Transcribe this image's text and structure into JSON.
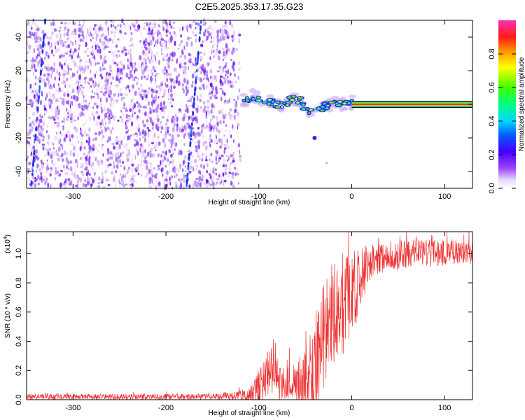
{
  "title": "C2E5.2025.353.17.35.G23",
  "chart_data": [
    {
      "type": "heatmap",
      "xlabel": "Height of straight line (km)",
      "ylabel": "Frequency (Hz)",
      "xlim": [
        -350,
        130
      ],
      "ylim": [
        -50,
        50
      ],
      "xticks": [
        -300,
        -200,
        -100,
        0,
        100
      ],
      "xtick_labels": [
        "-300",
        "-200",
        "-100",
        "0",
        "100"
      ],
      "yticks": [
        -40,
        -20,
        0,
        20,
        40
      ],
      "ytick_labels": [
        "-40",
        "-20",
        "0",
        "20",
        "40"
      ],
      "noise_region_x": [
        -350,
        -120
      ],
      "meteor_trails": [
        {
          "x_at_bottom": -178,
          "x_at_top": -162
        },
        {
          "x_at_bottom": -345,
          "x_at_top": -330
        }
      ],
      "signal_ridge": [
        {
          "x": -117,
          "freq": 2
        },
        {
          "x": -105,
          "freq": 5
        },
        {
          "x": -95,
          "freq": 2
        },
        {
          "x": -85,
          "freq": 1
        },
        {
          "x": -75,
          "freq": -1
        },
        {
          "x": -65,
          "freq": 3
        },
        {
          "x": -55,
          "freq": 2
        },
        {
          "x": -48,
          "freq": -4
        },
        {
          "x": -40,
          "freq": -6
        },
        {
          "x": -32,
          "freq": -2
        },
        {
          "x": -25,
          "freq": 0
        },
        {
          "x": -15,
          "freq": 1
        },
        {
          "x": -5,
          "freq": 0
        },
        {
          "x": 3,
          "freq": 1
        }
      ],
      "carrier": {
        "freq": 0,
        "x_start": 0,
        "x_end": 130
      },
      "colorbar": {
        "label": "Normalized spectral amplitude",
        "range": [
          0,
          1
        ],
        "ticks": [
          0.0,
          0.2,
          0.4,
          0.6,
          0.8
        ],
        "tick_labels": [
          "0.0",
          "0.2",
          "0.4",
          "0.6",
          "0.8"
        ],
        "colormap": "rainbow (white-violet-blue-cyan-green-yellow-red-magenta)"
      }
    },
    {
      "type": "line",
      "xlabel": "Height of straight line (km)",
      "ylabel": "SNR (10 * v/v)",
      "scale_label": "(x10",
      "scale_exponent": "4",
      "xlim": [
        -350,
        130
      ],
      "ylim": [
        0,
        1.15
      ],
      "xticks": [
        -300,
        -200,
        -100,
        0,
        100
      ],
      "xtick_labels": [
        "-300",
        "-200",
        "-100",
        "0",
        "100"
      ],
      "yticks": [
        0.0,
        0.2,
        0.4,
        0.6,
        0.8,
        1.0
      ],
      "ytick_labels": [
        "0.0",
        "0.2",
        "0.4",
        "0.6",
        "0.8",
        "1.0"
      ],
      "color": "#ee3333",
      "series": [
        {
          "name": "SNR",
          "envelope": [
            {
              "x": -350,
              "base": 0.02,
              "amp": 0.02
            },
            {
              "x": -150,
              "base": 0.02,
              "amp": 0.02
            },
            {
              "x": -110,
              "base": 0.03,
              "amp": 0.05
            },
            {
              "x": -95,
              "base": 0.12,
              "amp": 0.14
            },
            {
              "x": -85,
              "base": 0.25,
              "amp": 0.2
            },
            {
              "x": -75,
              "base": 0.1,
              "amp": 0.14
            },
            {
              "x": -60,
              "base": 0.1,
              "amp": 0.12
            },
            {
              "x": -45,
              "base": 0.22,
              "amp": 0.3
            },
            {
              "x": -35,
              "base": 0.3,
              "amp": 0.4
            },
            {
              "x": -25,
              "base": 0.55,
              "amp": 0.4
            },
            {
              "x": -10,
              "base": 0.65,
              "amp": 0.35
            },
            {
              "x": 0,
              "base": 0.72,
              "amp": 0.3
            },
            {
              "x": 20,
              "base": 0.95,
              "amp": 0.12
            },
            {
              "x": 60,
              "base": 1.0,
              "amp": 0.1
            },
            {
              "x": 130,
              "base": 1.01,
              "amp": 0.08
            }
          ]
        }
      ]
    }
  ]
}
